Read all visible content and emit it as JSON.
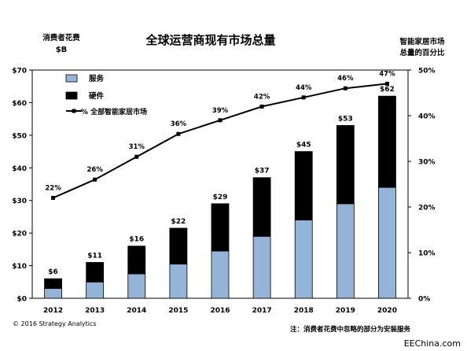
{
  "chart_data": {
    "type": "bar",
    "title": "全球运营商现有市场总量",
    "ylabel_left": [
      "消费者花费",
      "$B"
    ],
    "ylabel_right": [
      "智能家居市场",
      "总量的百分比"
    ],
    "categories": [
      "2012",
      "2013",
      "2014",
      "2015",
      "2016",
      "2017",
      "2018",
      "2019",
      "2020"
    ],
    "stacked": true,
    "series": [
      {
        "name": "服务",
        "kind": "bar",
        "color": "#95b3d7",
        "values": [
          3,
          5,
          7.5,
          10.5,
          14.5,
          19,
          24,
          29,
          34
        ]
      },
      {
        "name": "硬件",
        "kind": "bar",
        "color": "#000000",
        "values": [
          3,
          6,
          8.5,
          11,
          14.5,
          18,
          21,
          24,
          28
        ]
      },
      {
        "name": "% 全部智能家居市场",
        "kind": "line",
        "axis": "right",
        "color": "#000000",
        "values": [
          22,
          26,
          31,
          36,
          39,
          42,
          44,
          46,
          47
        ]
      }
    ],
    "total_labels": [
      "$6",
      "$11",
      "$16",
      "$22",
      "$29",
      "$37",
      "$45",
      "$53",
      "$62"
    ],
    "line_labels": [
      "22%",
      "26%",
      "31%",
      "36%",
      "39%",
      "42%",
      "44%",
      "46%",
      "47%"
    ],
    "ylim_left": [
      0,
      70
    ],
    "ylim_right": [
      0,
      50
    ],
    "yticks_left": [
      "$0",
      "$10",
      "$20",
      "$30",
      "$40",
      "$50",
      "$60",
      "$70"
    ],
    "yticks_right": [
      "0%",
      "10%",
      "20%",
      "30%",
      "40%",
      "50%"
    ],
    "legend_position": "top-left",
    "grid": false
  },
  "footer": {
    "copyright": "© 2016  Strategy Analytics",
    "note": "注：消费者花费中忽略的部分为安装服务",
    "watermark": "EEChina.com"
  }
}
